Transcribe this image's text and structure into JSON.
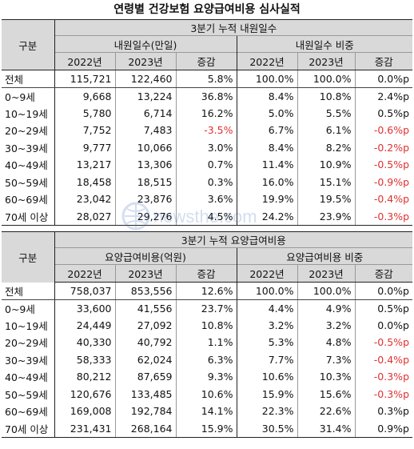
{
  "title": "연령별 건강보험 요양급여비용 심사실적",
  "watermark": "newsthe.com",
  "table1": {
    "section_header": "3분기 누적 내원일수",
    "row_header": "구분",
    "group_left": "내원일수(만일)",
    "group_right": "내원일수 비중",
    "columns": [
      "2022년",
      "2023년",
      "증감",
      "2022년",
      "2023년",
      "증감"
    ],
    "rows": [
      {
        "label": "전체",
        "v": [
          "115,721",
          "122,460",
          "5.8%",
          "100.0%",
          "100.0%",
          "0.0%p"
        ],
        "neg": [
          false,
          false,
          false,
          false,
          false,
          false
        ]
      },
      {
        "label": "0~9세",
        "v": [
          "9,668",
          "13,224",
          "36.8%",
          "8.4%",
          "10.8%",
          "2.4%p"
        ],
        "neg": [
          false,
          false,
          false,
          false,
          false,
          false
        ]
      },
      {
        "label": "10~19세",
        "v": [
          "5,780",
          "6,714",
          "16.2%",
          "5.0%",
          "5.5%",
          "0.5%p"
        ],
        "neg": [
          false,
          false,
          false,
          false,
          false,
          false
        ]
      },
      {
        "label": "20~29세",
        "v": [
          "7,752",
          "7,483",
          "-3.5%",
          "6.7%",
          "6.1%",
          "-0.6%p"
        ],
        "neg": [
          false,
          false,
          true,
          false,
          false,
          true
        ]
      },
      {
        "label": "30~39세",
        "v": [
          "9,777",
          "10,066",
          "3.0%",
          "8.4%",
          "8.2%",
          "-0.2%p"
        ],
        "neg": [
          false,
          false,
          false,
          false,
          false,
          true
        ]
      },
      {
        "label": "40~49세",
        "v": [
          "13,217",
          "13,306",
          "0.7%",
          "11.4%",
          "10.9%",
          "-0.5%p"
        ],
        "neg": [
          false,
          false,
          false,
          false,
          false,
          true
        ]
      },
      {
        "label": "50~59세",
        "v": [
          "18,458",
          "18,515",
          "0.3%",
          "16.0%",
          "15.1%",
          "-0.9%p"
        ],
        "neg": [
          false,
          false,
          false,
          false,
          false,
          true
        ]
      },
      {
        "label": "60~69세",
        "v": [
          "23,042",
          "23,876",
          "3.6%",
          "19.9%",
          "19.5%",
          "-0.4%p"
        ],
        "neg": [
          false,
          false,
          false,
          false,
          false,
          true
        ]
      },
      {
        "label": "70세 이상",
        "v": [
          "28,027",
          "29,276",
          "4.5%",
          "24.2%",
          "23.9%",
          "-0.3%p"
        ],
        "neg": [
          false,
          false,
          false,
          false,
          false,
          true
        ]
      }
    ]
  },
  "table2": {
    "section_header": "3분기 누적 요양급여비용",
    "row_header": "구분",
    "group_left": "요양급여비용(억원)",
    "group_right": "요양급여비용 비중",
    "columns": [
      "2022년",
      "2023년",
      "증감",
      "2022년",
      "2023년",
      "증감"
    ],
    "rows": [
      {
        "label": "전체",
        "v": [
          "758,037",
          "853,556",
          "12.6%",
          "100.0%",
          "100.0%",
          "0.0%p"
        ],
        "neg": [
          false,
          false,
          false,
          false,
          false,
          false
        ]
      },
      {
        "label": "0~9세",
        "v": [
          "33,600",
          "41,556",
          "23.7%",
          "4.4%",
          "4.9%",
          "0.5%p"
        ],
        "neg": [
          false,
          false,
          false,
          false,
          false,
          false
        ]
      },
      {
        "label": "10~19세",
        "v": [
          "24,449",
          "27,092",
          "10.8%",
          "3.2%",
          "3.2%",
          "0.0%p"
        ],
        "neg": [
          false,
          false,
          false,
          false,
          false,
          false
        ]
      },
      {
        "label": "20~29세",
        "v": [
          "40,330",
          "40,792",
          "1.1%",
          "5.3%",
          "4.8%",
          "-0.5%p"
        ],
        "neg": [
          false,
          false,
          false,
          false,
          false,
          true
        ]
      },
      {
        "label": "30~39세",
        "v": [
          "58,333",
          "62,024",
          "6.3%",
          "7.7%",
          "7.3%",
          "-0.4%p"
        ],
        "neg": [
          false,
          false,
          false,
          false,
          false,
          true
        ]
      },
      {
        "label": "40~49세",
        "v": [
          "80,212",
          "87,659",
          "9.3%",
          "10.6%",
          "10.3%",
          "-0.3%p"
        ],
        "neg": [
          false,
          false,
          false,
          false,
          false,
          true
        ]
      },
      {
        "label": "50~59세",
        "v": [
          "120,676",
          "133,485",
          "10.6%",
          "15.9%",
          "15.6%",
          "-0.3%p"
        ],
        "neg": [
          false,
          false,
          false,
          false,
          false,
          true
        ]
      },
      {
        "label": "60~69세",
        "v": [
          "169,008",
          "192,784",
          "14.1%",
          "22.3%",
          "22.6%",
          "0.3%p"
        ],
        "neg": [
          false,
          false,
          false,
          false,
          false,
          false
        ]
      },
      {
        "label": "70세 이상",
        "v": [
          "231,431",
          "268,164",
          "15.9%",
          "30.5%",
          "31.4%",
          "0.9%p"
        ],
        "neg": [
          false,
          false,
          false,
          false,
          false,
          false
        ]
      }
    ]
  }
}
